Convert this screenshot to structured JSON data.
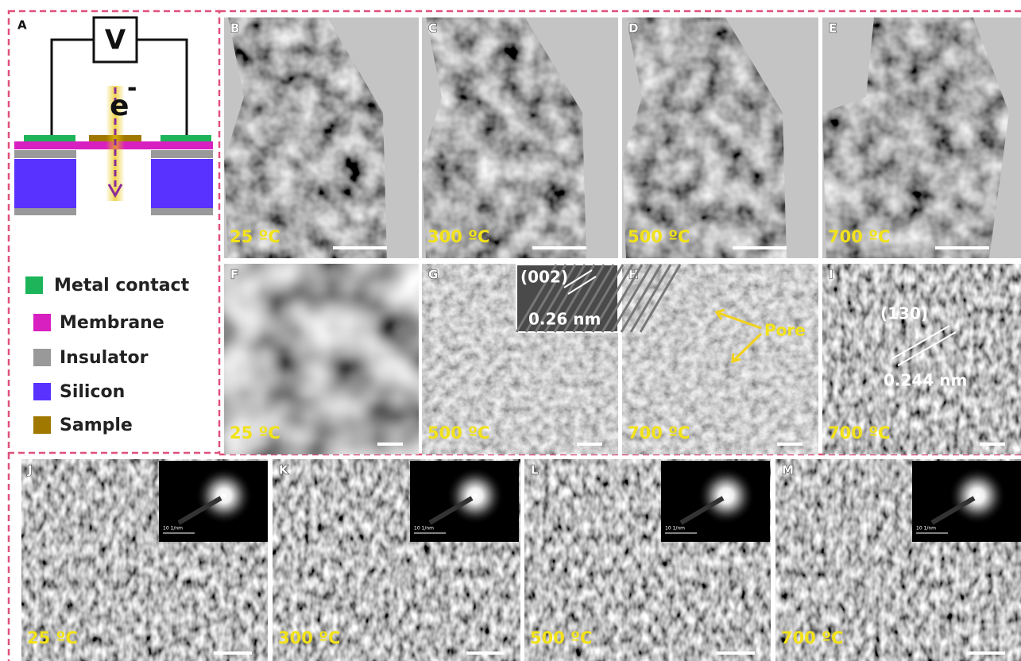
{
  "panel_a": {
    "label": "A",
    "voltage": "V",
    "electron": "e",
    "electron_charge": "-",
    "legend": [
      "Metal contact",
      "Membrane",
      "Insulator",
      "Silicon",
      "Sample"
    ]
  },
  "panels": [
    {
      "label": "B",
      "temperature": "25 ºC"
    },
    {
      "label": "C",
      "temperature": "300 ºC"
    },
    {
      "label": "D",
      "temperature": "500 ºC"
    },
    {
      "label": "E",
      "temperature": "700 ºC"
    },
    {
      "label": "F",
      "temperature": "25 ºC"
    },
    {
      "label": "G",
      "temperature": "500 ºC"
    },
    {
      "label": "H",
      "temperature": "700 ºC"
    },
    {
      "label": "I",
      "temperature": "700 ºC"
    },
    {
      "label": "J",
      "temperature": "25 ºC"
    },
    {
      "label": "K",
      "temperature": "300 ºC"
    },
    {
      "label": "L",
      "temperature": "500 ºC"
    },
    {
      "label": "M",
      "temperature": "700 ºC"
    }
  ],
  "annotations": {
    "g_plane": "(002)",
    "g_spacing": "0.26 nm",
    "h_pore": "Pore",
    "i_plane": "(130)",
    "i_spacing": "0.244 nm",
    "saed_scale": "10 1/nm"
  }
}
